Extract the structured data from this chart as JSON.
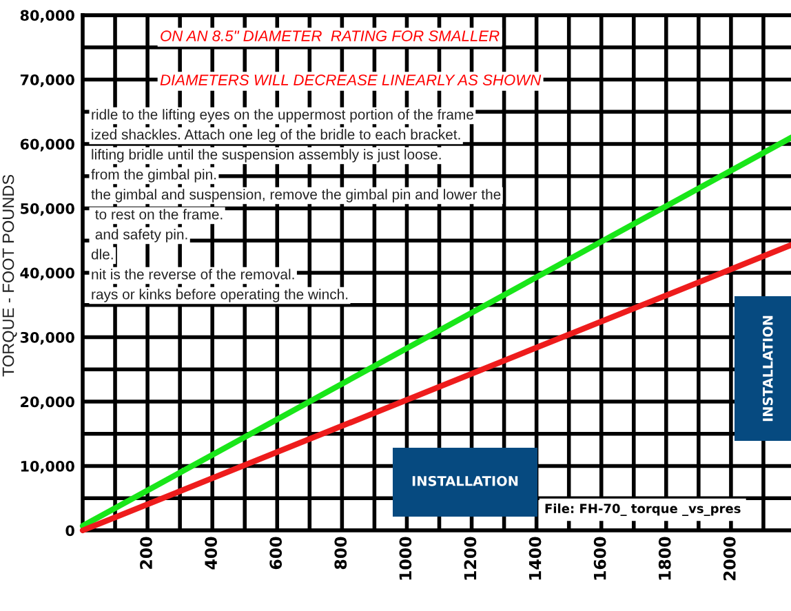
{
  "chart_data": {
    "type": "line",
    "ylabel": "TORQUE - FOOT POUNDS",
    "x": [
      0,
      2190
    ],
    "series": [
      {
        "color": "#19e619",
        "values": [
          700,
          61100
        ]
      },
      {
        "color": "#ee1c1c",
        "values": [
          0,
          44400
        ]
      }
    ],
    "xlim": [
      0,
      2190
    ],
    "xticks": [
      {
        "value": 100,
        "label": null
      },
      200,
      {
        "value": 300,
        "label": null
      },
      400,
      {
        "value": 500,
        "label": null
      },
      600,
      {
        "value": 700,
        "label": null
      },
      800,
      {
        "value": 900,
        "label": null
      },
      1000,
      {
        "value": 1100,
        "label": null
      },
      1200,
      {
        "value": 1300,
        "label": null
      },
      1400,
      {
        "value": 1500,
        "label": null
      },
      1600,
      {
        "value": 1700,
        "label": null
      },
      1800,
      {
        "value": 1900,
        "label": null
      },
      2000,
      {
        "value": 2100,
        "label": null
      }
    ],
    "ylim": [
      0,
      80000
    ],
    "yticks": [
      0,
      {
        "value": 5000,
        "label": null
      },
      {
        "value": 10000,
        "label": "10,000"
      },
      {
        "value": 15000,
        "label": null
      },
      {
        "value": 20000,
        "label": "20,000"
      },
      {
        "value": 25000,
        "label": null
      },
      {
        "value": 30000,
        "label": "30,000"
      },
      {
        "value": 35000,
        "label": null
      },
      {
        "value": 40000,
        "label": "40,000"
      },
      {
        "value": 45000,
        "label": null
      },
      {
        "value": 50000,
        "label": "50,000"
      },
      {
        "value": 55000,
        "label": null
      },
      {
        "value": 60000,
        "label": "60,000"
      },
      {
        "value": 65000,
        "label": null
      },
      {
        "value": 70000,
        "label": "70,000"
      },
      {
        "value": 75000,
        "label": null
      },
      {
        "value": 80000,
        "label": "80,000"
      }
    ],
    "grid": true,
    "line_style": "solid",
    "annotations": [
      "ON AN 8.5\" DIAMETER  RATING FOR SMALLER",
      "DIAMETERS WILL DECREASE LINEARLY AS SHOWN",
      "ridle to the lifting eyes on the uppermost portion of the frame",
      "ized shackles. Attach one leg of the bridle to each bracket.",
      "lifting bridle until the suspension assembly is just loose.",
      "from the gimbal pin.",
      "the gimbal and suspension, remove the gimbal pin and lower the",
      " to rest on the frame.",
      " and safety pin.",
      "dle.",
      "nit is the reverse of the removal.",
      "rays or kinks before operating the winch.",
      "INSTALLATION",
      "INSTALLATION",
      "File: FH-70_ torque _vs_pres"
    ]
  }
}
